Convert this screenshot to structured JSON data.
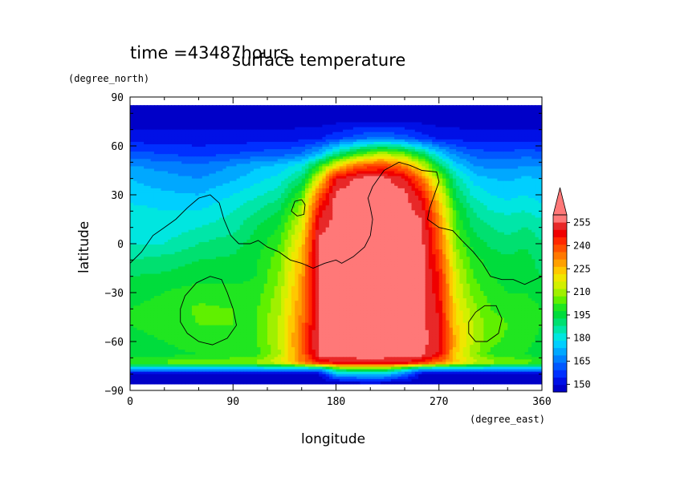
{
  "chart_data": {
    "type": "heatmap",
    "time_label": "time =43487hours",
    "title": "surface temperature",
    "xlabel": "longitude",
    "ylabel": "latitude",
    "x_unit": "(degree_east)",
    "y_unit": "(degree_north)",
    "xlim": [
      0,
      360
    ],
    "ylim": [
      -90,
      90
    ],
    "x_ticks": [
      0,
      90,
      180,
      270,
      360
    ],
    "y_ticks": [
      90,
      60,
      30,
      0,
      -30,
      -60,
      -90
    ],
    "colorbar": {
      "levels": [
        145,
        150,
        155,
        160,
        165,
        170,
        175,
        180,
        185,
        190,
        195,
        200,
        205,
        210,
        215,
        220,
        225,
        230,
        235,
        240,
        245,
        250,
        255,
        260
      ],
      "tick_labels": [
        150,
        165,
        180,
        195,
        210,
        225,
        240,
        255
      ],
      "colors": [
        "#0000c8",
        "#0010e6",
        "#0030ff",
        "#0058ff",
        "#0080ff",
        "#00a8ff",
        "#00cfff",
        "#00e6e0",
        "#00e6a8",
        "#00e070",
        "#00dc3c",
        "#20e620",
        "#60f000",
        "#a0f000",
        "#d2f000",
        "#f0e600",
        "#ffc800",
        "#ffa000",
        "#ff7800",
        "#ff5000",
        "#ff2800",
        "#f00000",
        "#e82828",
        "#ff7878"
      ],
      "extend": "max"
    },
    "values": {
      "lat": [
        85,
        75,
        65,
        55,
        48,
        40,
        30,
        20,
        10,
        0,
        -10,
        -20,
        -30,
        -40,
        -50,
        -60,
        -68,
        -73,
        -77,
        -80,
        -85
      ],
      "lon": [
        0,
        30,
        60,
        90,
        110,
        130,
        150,
        165,
        180,
        200,
        220,
        240,
        255,
        270,
        285,
        300,
        315,
        330,
        345,
        360
      ],
      "temps": [
        [
          146,
          146,
          146,
          146,
          146,
          146,
          146,
          146,
          146,
          146,
          146,
          146,
          146,
          146,
          146,
          146,
          146,
          146,
          146,
          146
        ],
        [
          148,
          148,
          148,
          148,
          148,
          148,
          148,
          148,
          149,
          150,
          150,
          150,
          149,
          148,
          148,
          148,
          148,
          148,
          148,
          148
        ],
        [
          152,
          152,
          152,
          152,
          152,
          152,
          153,
          154,
          158,
          163,
          166,
          162,
          157,
          154,
          153,
          152,
          152,
          152,
          152,
          152
        ],
        [
          162,
          160,
          158,
          160,
          162,
          163,
          166,
          175,
          190,
          205,
          215,
          208,
          195,
          178,
          168,
          163,
          162,
          162,
          163,
          162
        ],
        [
          170,
          168,
          166,
          170,
          174,
          176,
          182,
          200,
          222,
          240,
          245,
          235,
          218,
          195,
          178,
          170,
          168,
          168,
          170,
          170
        ],
        [
          175,
          172,
          170,
          174,
          178,
          182,
          192,
          220,
          255,
          262,
          262,
          256,
          238,
          212,
          188,
          178,
          175,
          174,
          176,
          175
        ],
        [
          178,
          176,
          175,
          180,
          184,
          188,
          205,
          240,
          262,
          262,
          262,
          262,
          252,
          224,
          195,
          184,
          180,
          178,
          180,
          178
        ],
        [
          182,
          180,
          180,
          185,
          190,
          195,
          214,
          252,
          262,
          262,
          262,
          262,
          258,
          232,
          202,
          190,
          185,
          184,
          185,
          182
        ],
        [
          180,
          182,
          185,
          188,
          195,
          200,
          220,
          258,
          262,
          262,
          262,
          262,
          262,
          238,
          205,
          194,
          190,
          188,
          190,
          188
        ],
        [
          185,
          185,
          190,
          193,
          197,
          204,
          226,
          262,
          262,
          262,
          262,
          262,
          262,
          242,
          210,
          198,
          194,
          192,
          194,
          190
        ],
        [
          190,
          192,
          195,
          196,
          199,
          208,
          230,
          262,
          262,
          262,
          262,
          262,
          262,
          246,
          214,
          202,
          198,
          196,
          198,
          192
        ],
        [
          195,
          196,
          198,
          198,
          200,
          210,
          232,
          262,
          262,
          262,
          262,
          262,
          262,
          250,
          218,
          205,
          200,
          198,
          198,
          195
        ],
        [
          198,
          200,
          203,
          202,
          202,
          212,
          234,
          262,
          262,
          262,
          262,
          262,
          262,
          252,
          220,
          208,
          203,
          200,
          200,
          198
        ],
        [
          200,
          202,
          206,
          205,
          204,
          214,
          236,
          262,
          262,
          262,
          262,
          262,
          262,
          254,
          223,
          212,
          205,
          203,
          202,
          200
        ],
        [
          200,
          202,
          205,
          205,
          205,
          215,
          238,
          262,
          262,
          262,
          262,
          262,
          262,
          255,
          226,
          215,
          208,
          205,
          204,
          200
        ],
        [
          198,
          200,
          203,
          203,
          204,
          215,
          240,
          262,
          262,
          262,
          262,
          262,
          262,
          256,
          228,
          214,
          206,
          204,
          202,
          198
        ],
        [
          196,
          198,
          200,
          201,
          203,
          214,
          238,
          262,
          262,
          262,
          262,
          262,
          262,
          254,
          226,
          212,
          204,
          202,
          200,
          196
        ],
        [
          205,
          207,
          210,
          210,
          212,
          220,
          236,
          250,
          255,
          258,
          258,
          255,
          248,
          238,
          226,
          218,
          213,
          210,
          208,
          205
        ],
        [
          172,
          172,
          172,
          172,
          172,
          172,
          172,
          172,
          198,
          205,
          205,
          190,
          172,
          172,
          172,
          172,
          172,
          172,
          172,
          172
        ],
        [
          148,
          148,
          148,
          148,
          148,
          148,
          148,
          148,
          175,
          178,
          178,
          165,
          148,
          148,
          148,
          148,
          148,
          148,
          148,
          148
        ],
        [
          146,
          146,
          146,
          146,
          146,
          146,
          146,
          146,
          148,
          150,
          150,
          148,
          146,
          146,
          146,
          146,
          146,
          146,
          146,
          146
        ]
      ]
    },
    "contour_color": "#000000"
  },
  "colors": {
    "background": "#ffffff",
    "axes": "#000000",
    "missing": "#ffffff"
  }
}
